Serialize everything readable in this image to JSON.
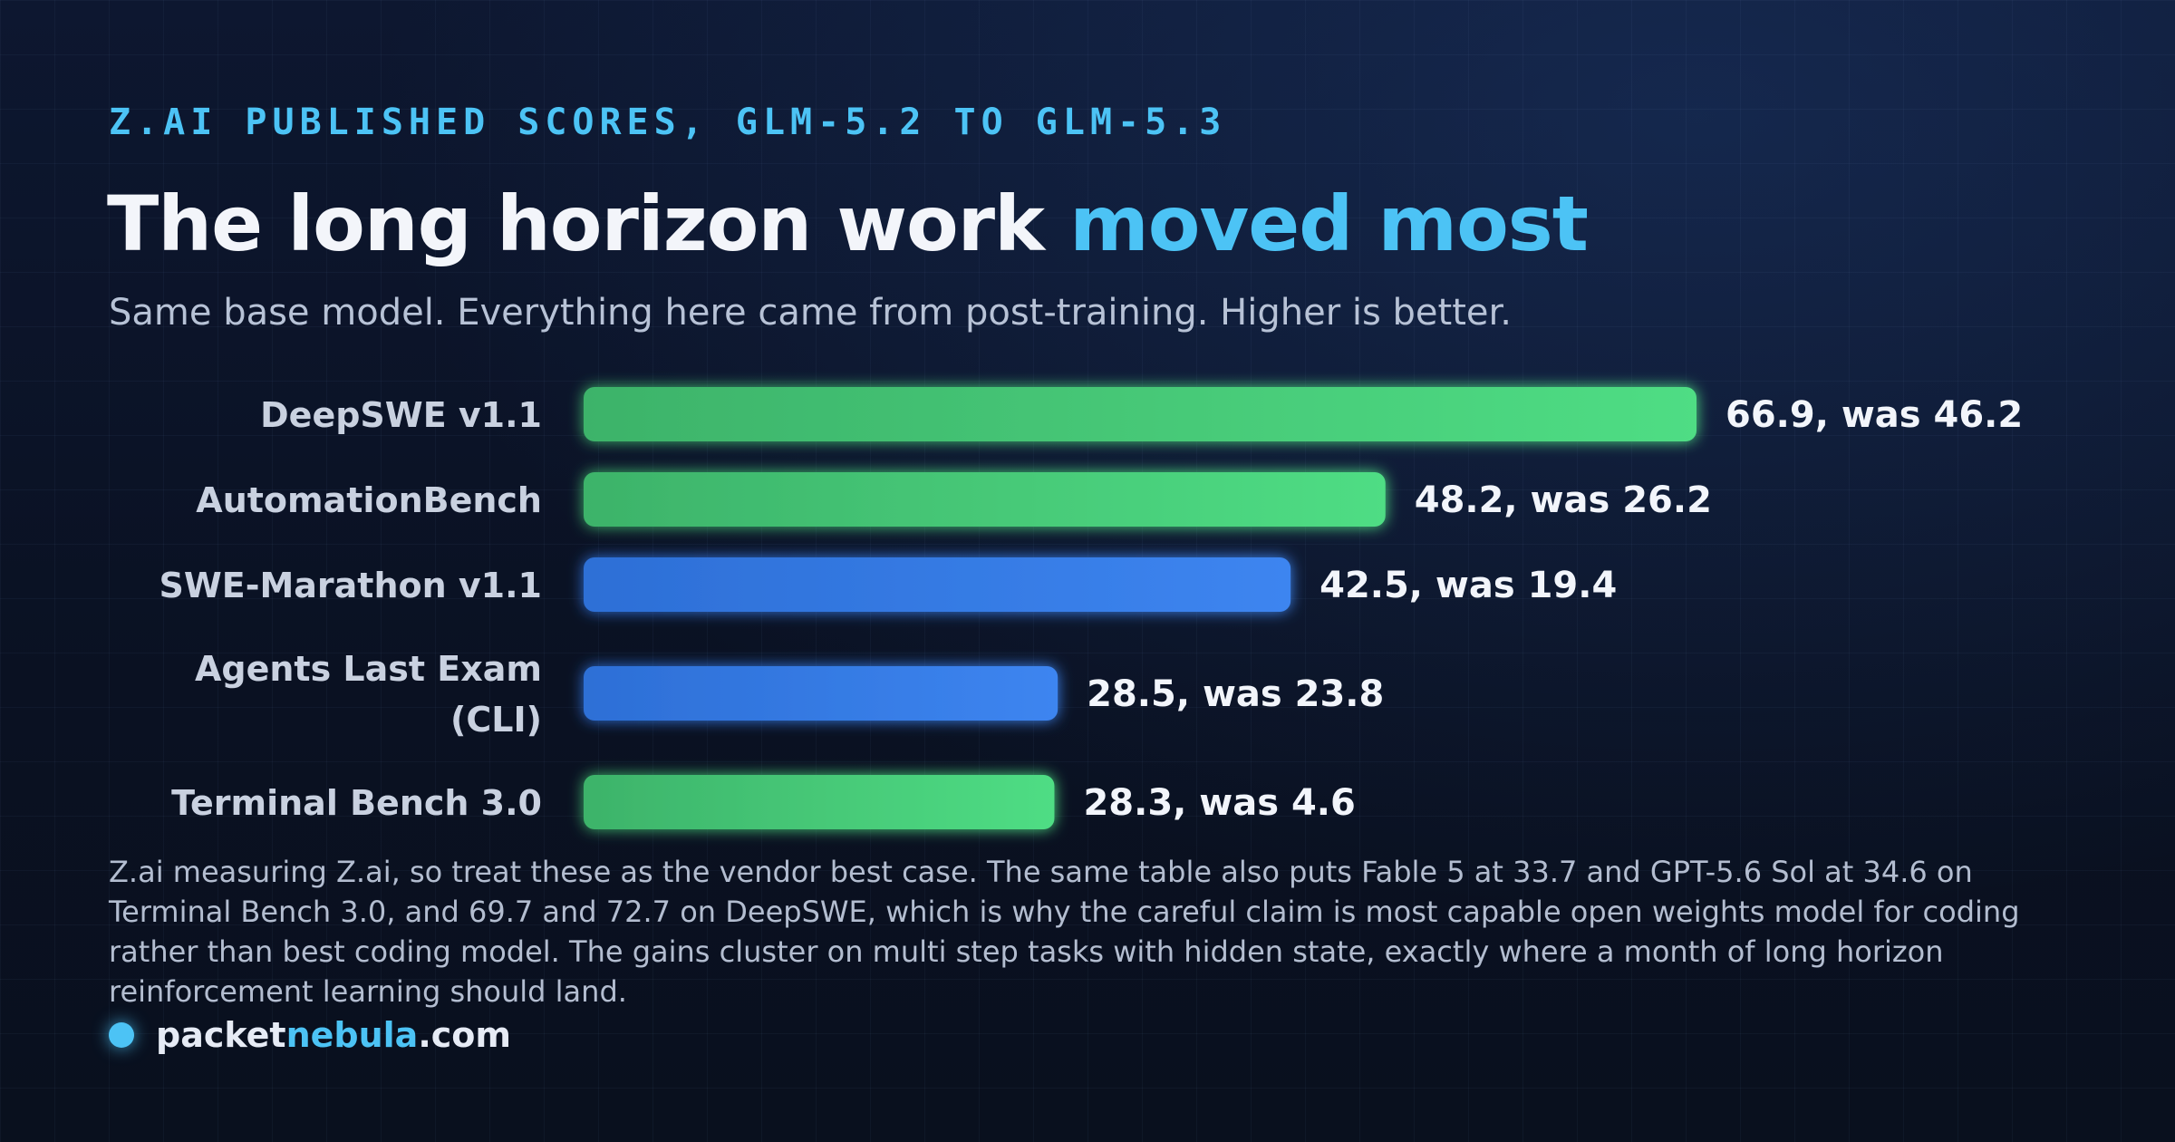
{
  "header": {
    "eyebrow": "Z.AI PUBLISHED SCORES, GLM-5.2 TO GLM-5.3",
    "title_main": "The long horizon work ",
    "title_accent": "moved most",
    "subtitle": "Same base model. Everything here came from post-training. Higher is better."
  },
  "chart_data": {
    "type": "bar",
    "orientation": "horizontal",
    "categories": [
      [
        "DeepSWE v1.1"
      ],
      [
        "AutomationBench"
      ],
      [
        "SWE-Marathon v1.1"
      ],
      [
        "Agents Last Exam",
        "(CLI)"
      ],
      [
        "Terminal Bench 3.0"
      ]
    ],
    "values": [
      66.9,
      48.2,
      42.5,
      28.5,
      28.3
    ],
    "previous_values": [
      46.2,
      26.2,
      19.4,
      23.8,
      4.6
    ],
    "data_labels": [
      "66.9, was 46.2",
      "48.2, was 26.2",
      "42.5, was 19.4",
      "28.5, was 23.8",
      "28.3, was 4.6"
    ],
    "bar_colors": [
      "green",
      "green",
      "blue",
      "blue",
      "green"
    ],
    "colors": {
      "green_start": "#3db36a",
      "green_end": "#4fdd84",
      "blue_start": "#2d6fd6",
      "blue_end": "#3d85f0"
    },
    "xlim": [
      0,
      66.9
    ],
    "grid": false,
    "legend": "none"
  },
  "footer": {
    "note": "Z.ai measuring Z.ai, so treat these as the vendor best case. The same table also puts Fable 5 at 33.7 and GPT-5.6 Sol at 34.6 on Terminal Bench 3.0, and 69.7 and 72.7 on DeepSWE, which is why the careful claim is most capable open weights model for coding rather than best coding model. The gains cluster on multi step tasks with hidden state, exactly where a month of long horizon reinforcement learning should land.",
    "brand_part1": "packet",
    "brand_part2": "nebula",
    "brand_part3": ".com"
  }
}
